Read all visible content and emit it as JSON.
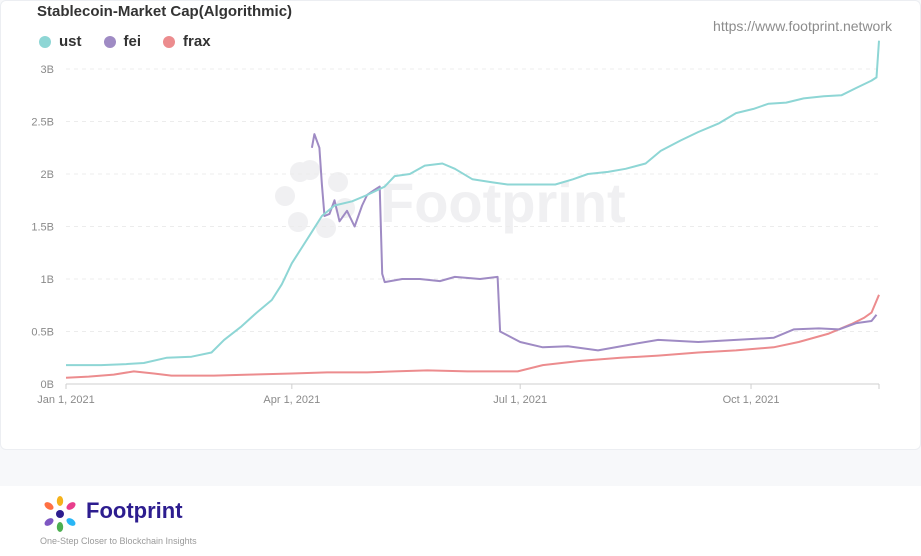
{
  "source_url": "https://www.footprint.network",
  "watermark": "Footprint",
  "footer": {
    "brand": "Footprint",
    "tagline": "One-Step Closer to Blockchain Insights"
  },
  "colors": {
    "ust": "#8ed6d5",
    "fei": "#9f8bc4",
    "frax": "#ec8c8e"
  },
  "chart_data": {
    "type": "line",
    "title": "Stablecoin-Market Cap(Algorithmic)",
    "xlabel": "",
    "ylabel": "",
    "x_range": [
      "2021-01-01",
      "2021-11-21"
    ],
    "ylim": [
      0,
      3.2
    ],
    "y_ticks": [
      0,
      0.5,
      1,
      1.5,
      2,
      2.5,
      3
    ],
    "y_tick_labels": [
      "0B",
      "0.5B",
      "1B",
      "1.5B",
      "2B",
      "2.5B",
      "3B"
    ],
    "x_ticks": [
      "2021-01-01",
      "2021-04-01",
      "2021-07-01",
      "2021-10-01"
    ],
    "x_tick_labels": [
      "Jan 1, 2021",
      "Apr 1, 2021",
      "Jul 1, 2021",
      "Oct 1, 2021"
    ],
    "grid": "horizontal",
    "legend_position": "top-left",
    "unit": "billions USD",
    "series": [
      {
        "name": "ust",
        "points": [
          [
            "2021-01-01",
            0.18
          ],
          [
            "2021-01-15",
            0.18
          ],
          [
            "2021-01-25",
            0.19
          ],
          [
            "2021-02-01",
            0.2
          ],
          [
            "2021-02-10",
            0.25
          ],
          [
            "2021-02-20",
            0.26
          ],
          [
            "2021-02-28",
            0.3
          ],
          [
            "2021-03-05",
            0.42
          ],
          [
            "2021-03-12",
            0.55
          ],
          [
            "2021-03-18",
            0.68
          ],
          [
            "2021-03-24",
            0.8
          ],
          [
            "2021-03-28",
            0.95
          ],
          [
            "2021-04-01",
            1.15
          ],
          [
            "2021-04-05",
            1.3
          ],
          [
            "2021-04-09",
            1.45
          ],
          [
            "2021-04-13",
            1.6
          ],
          [
            "2021-04-18",
            1.7
          ],
          [
            "2021-04-25",
            1.74
          ],
          [
            "2021-05-01",
            1.8
          ],
          [
            "2021-05-08",
            1.88
          ],
          [
            "2021-05-12",
            1.98
          ],
          [
            "2021-05-18",
            2.0
          ],
          [
            "2021-05-24",
            2.08
          ],
          [
            "2021-05-31",
            2.1
          ],
          [
            "2021-06-05",
            2.05
          ],
          [
            "2021-06-12",
            1.95
          ],
          [
            "2021-06-20",
            1.92
          ],
          [
            "2021-06-26",
            1.9
          ],
          [
            "2021-07-05",
            1.9
          ],
          [
            "2021-07-15",
            1.9
          ],
          [
            "2021-07-22",
            1.95
          ],
          [
            "2021-07-28",
            2.0
          ],
          [
            "2021-08-05",
            2.02
          ],
          [
            "2021-08-12",
            2.05
          ],
          [
            "2021-08-20",
            2.1
          ],
          [
            "2021-08-26",
            2.22
          ],
          [
            "2021-09-03",
            2.32
          ],
          [
            "2021-09-10",
            2.4
          ],
          [
            "2021-09-18",
            2.48
          ],
          [
            "2021-09-25",
            2.58
          ],
          [
            "2021-10-02",
            2.62
          ],
          [
            "2021-10-08",
            2.67
          ],
          [
            "2021-10-15",
            2.68
          ],
          [
            "2021-10-22",
            2.72
          ],
          [
            "2021-10-30",
            2.74
          ],
          [
            "2021-11-06",
            2.75
          ],
          [
            "2021-11-12",
            2.82
          ],
          [
            "2021-11-18",
            2.89
          ],
          [
            "2021-11-20",
            2.92
          ],
          [
            "2021-11-21",
            3.27
          ]
        ]
      },
      {
        "name": "fei",
        "points": [
          [
            "2021-04-09",
            2.25
          ],
          [
            "2021-04-10",
            2.38
          ],
          [
            "2021-04-12",
            2.25
          ],
          [
            "2021-04-13",
            1.9
          ],
          [
            "2021-04-14",
            1.6
          ],
          [
            "2021-04-16",
            1.62
          ],
          [
            "2021-04-18",
            1.75
          ],
          [
            "2021-04-20",
            1.55
          ],
          [
            "2021-04-23",
            1.65
          ],
          [
            "2021-04-26",
            1.5
          ],
          [
            "2021-04-29",
            1.7
          ],
          [
            "2021-05-01",
            1.8
          ],
          [
            "2021-05-04",
            1.85
          ],
          [
            "2021-05-06",
            1.88
          ],
          [
            "2021-05-07",
            1.05
          ],
          [
            "2021-05-08",
            0.97
          ],
          [
            "2021-05-15",
            1.0
          ],
          [
            "2021-05-22",
            1.0
          ],
          [
            "2021-05-30",
            0.98
          ],
          [
            "2021-06-05",
            1.02
          ],
          [
            "2021-06-15",
            1.0
          ],
          [
            "2021-06-22",
            1.02
          ],
          [
            "2021-06-23",
            0.5
          ],
          [
            "2021-07-01",
            0.4
          ],
          [
            "2021-07-10",
            0.35
          ],
          [
            "2021-07-20",
            0.36
          ],
          [
            "2021-08-01",
            0.32
          ],
          [
            "2021-08-15",
            0.38
          ],
          [
            "2021-08-25",
            0.42
          ],
          [
            "2021-09-10",
            0.4
          ],
          [
            "2021-09-25",
            0.42
          ],
          [
            "2021-10-10",
            0.44
          ],
          [
            "2021-10-18",
            0.52
          ],
          [
            "2021-10-28",
            0.53
          ],
          [
            "2021-11-05",
            0.52
          ],
          [
            "2021-11-12",
            0.58
          ],
          [
            "2021-11-18",
            0.6
          ],
          [
            "2021-11-20",
            0.66
          ]
        ]
      },
      {
        "name": "frax",
        "points": [
          [
            "2021-01-01",
            0.06
          ],
          [
            "2021-01-10",
            0.07
          ],
          [
            "2021-01-20",
            0.09
          ],
          [
            "2021-01-28",
            0.12
          ],
          [
            "2021-02-05",
            0.1
          ],
          [
            "2021-02-12",
            0.08
          ],
          [
            "2021-03-01",
            0.08
          ],
          [
            "2021-03-15",
            0.09
          ],
          [
            "2021-04-01",
            0.1
          ],
          [
            "2021-04-15",
            0.11
          ],
          [
            "2021-05-01",
            0.11
          ],
          [
            "2021-05-12",
            0.12
          ],
          [
            "2021-05-25",
            0.13
          ],
          [
            "2021-06-10",
            0.12
          ],
          [
            "2021-06-30",
            0.12
          ],
          [
            "2021-07-10",
            0.18
          ],
          [
            "2021-07-25",
            0.22
          ],
          [
            "2021-08-10",
            0.25
          ],
          [
            "2021-08-25",
            0.27
          ],
          [
            "2021-09-10",
            0.3
          ],
          [
            "2021-09-25",
            0.32
          ],
          [
            "2021-10-10",
            0.35
          ],
          [
            "2021-10-20",
            0.4
          ],
          [
            "2021-11-01",
            0.48
          ],
          [
            "2021-11-10",
            0.57
          ],
          [
            "2021-11-15",
            0.63
          ],
          [
            "2021-11-18",
            0.68
          ],
          [
            "2021-11-21",
            0.85
          ]
        ]
      }
    ]
  }
}
